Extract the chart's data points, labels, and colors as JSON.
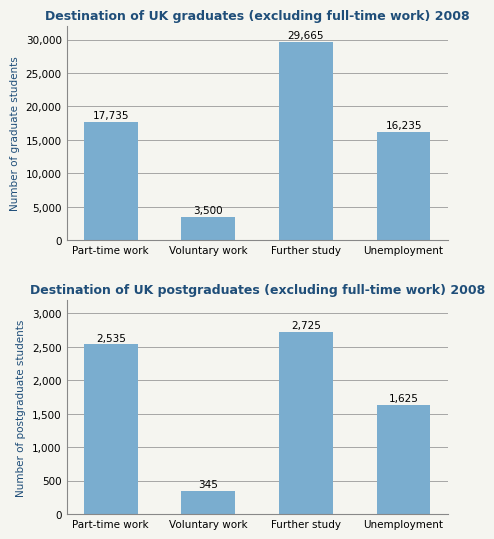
{
  "grad_title": "Destination of UK graduates (excluding full-time work) 2008",
  "postgrad_title": "Destination of UK postgraduates (excluding full-time work) 2008",
  "categories": [
    "Part-time work",
    "Voluntary work",
    "Further study",
    "Unemployment"
  ],
  "grad_values": [
    17735,
    3500,
    29665,
    16235
  ],
  "grad_labels": [
    "17,735",
    "3,500",
    "29,665",
    "16,235"
  ],
  "postgrad_values": [
    2535,
    345,
    2725,
    1625
  ],
  "postgrad_labels": [
    "2,535",
    "345",
    "2,725",
    "1,625"
  ],
  "bar_color": "#7aadcf",
  "grad_ylabel": "Number of graduate students",
  "postgrad_ylabel": "Number of postgraduate students",
  "grad_ylim": [
    0,
    32000
  ],
  "postgrad_ylim": [
    0,
    3200
  ],
  "grad_yticks": [
    0,
    5000,
    10000,
    15000,
    20000,
    25000,
    30000
  ],
  "postgrad_yticks": [
    0,
    500,
    1000,
    1500,
    2000,
    2500,
    3000
  ],
  "title_color": "#1f4e79",
  "ylabel_color": "#1f4e79",
  "title_fontsize": 9,
  "label_fontsize": 7.5,
  "axis_fontsize": 7.5,
  "ylabel_fontsize": 7.5,
  "bg_color": "#f5f5f0"
}
